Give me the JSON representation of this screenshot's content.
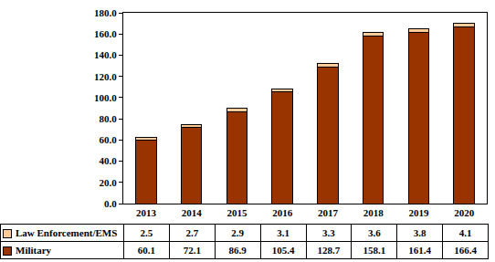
{
  "chart_data": {
    "type": "bar",
    "stacked": true,
    "categories": [
      "2013",
      "2014",
      "2015",
      "2016",
      "2017",
      "2018",
      "2019",
      "2020"
    ],
    "series": [
      {
        "name": "Law Enforcement/EMS",
        "color": "#ffcc99",
        "values": [
          2.5,
          2.7,
          2.9,
          3.1,
          3.3,
          3.6,
          3.8,
          4.1
        ]
      },
      {
        "name": "Military",
        "color": "#993300",
        "values": [
          60.1,
          72.1,
          86.9,
          105.4,
          128.7,
          158.1,
          161.4,
          166.4
        ]
      }
    ],
    "ylim": [
      0,
      180
    ],
    "yticks": [
      {
        "value": 0,
        "label": "0.0"
      },
      {
        "value": 20,
        "label": "20.0"
      },
      {
        "value": 40,
        "label": "40.0"
      },
      {
        "value": 60,
        "label": "60.0"
      },
      {
        "value": 80,
        "label": "80.0"
      },
      {
        "value": 100,
        "label": "100.0"
      },
      {
        "value": 120,
        "label": "120.0"
      },
      {
        "value": 140,
        "label": "140.0"
      },
      {
        "value": 160,
        "label": "160.0"
      },
      {
        "value": 180,
        "label": "180.0"
      }
    ],
    "grid": false
  }
}
